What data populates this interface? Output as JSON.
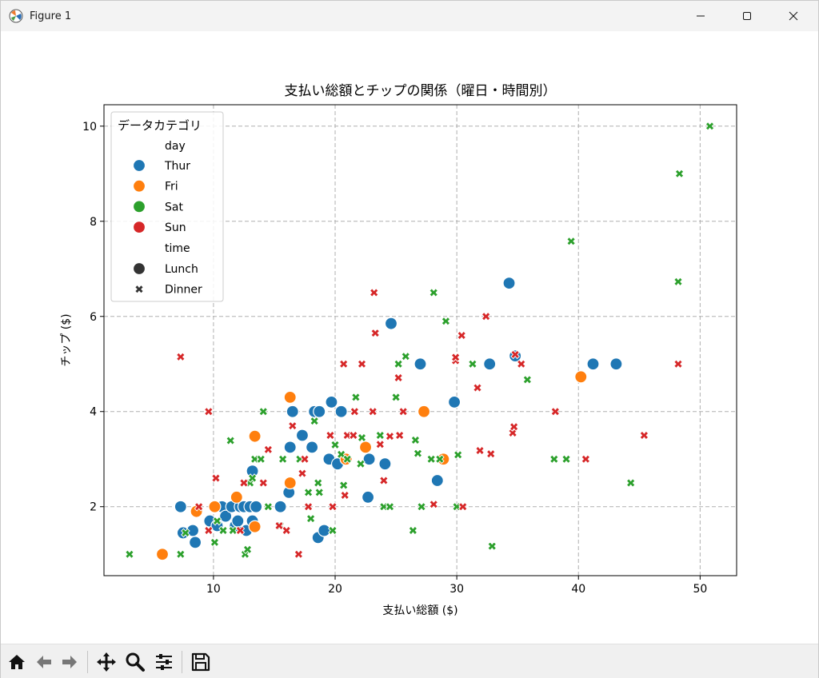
{
  "window": {
    "title": "Figure 1"
  },
  "toolbar": {
    "icons": [
      "home-icon",
      "back-arrow-icon",
      "forward-arrow-icon",
      "pan-move-icon",
      "zoom-magnifier-icon",
      "configure-subplots-icon",
      "save-floppy-icon"
    ]
  },
  "colors": {
    "Thur": "#1f77b4",
    "Fri": "#ff7f0e",
    "Sat": "#2ca02c",
    "Sun": "#d62728"
  },
  "chart_data": {
    "type": "scatter",
    "title": "支払い総額とチップの関係（曜日・時間別）",
    "xlabel": "支払い総額 ($)",
    "ylabel": "チップ ($)",
    "xlim": [
      1,
      53
    ],
    "ylim": [
      0.55,
      10.45
    ],
    "xticks": [
      10,
      20,
      30,
      40,
      50
    ],
    "yticks": [
      2,
      4,
      6,
      8,
      10
    ],
    "grid": true,
    "legend": {
      "title": "データカテゴリ",
      "placement": "top-left",
      "hue_header": "day",
      "style_header": "time",
      "days": [
        "Thur",
        "Fri",
        "Sat",
        "Sun"
      ],
      "times": [
        "Lunch",
        "Dinner"
      ]
    },
    "series": [
      {
        "name": "Thur",
        "marker_by_time": "Lunch",
        "points": [
          [
            7.3,
            2.0
          ],
          [
            7.5,
            1.45
          ],
          [
            8.3,
            1.5
          ],
          [
            8.5,
            1.25
          ],
          [
            9.7,
            1.7
          ],
          [
            10.3,
            1.6
          ],
          [
            10.7,
            2.0
          ],
          [
            11.0,
            1.8
          ],
          [
            11.5,
            2.0
          ],
          [
            11.8,
            1.6
          ],
          [
            12.0,
            1.7
          ],
          [
            12.2,
            2.0
          ],
          [
            12.5,
            2.0
          ],
          [
            12.7,
            1.5
          ],
          [
            13.0,
            2.0
          ],
          [
            13.2,
            2.75
          ],
          [
            13.5,
            2.0
          ],
          [
            13.2,
            1.7
          ],
          [
            15.5,
            2.0
          ],
          [
            16.2,
            2.3
          ],
          [
            16.3,
            3.25
          ],
          [
            16.5,
            4.0
          ],
          [
            17.3,
            3.5
          ],
          [
            18.1,
            3.25
          ],
          [
            18.3,
            4.0
          ],
          [
            18.7,
            4.0
          ],
          [
            18.6,
            1.35
          ],
          [
            19.1,
            1.5
          ],
          [
            19.5,
            3.0
          ],
          [
            19.7,
            4.2
          ],
          [
            20.2,
            2.9
          ],
          [
            20.5,
            4.0
          ],
          [
            22.7,
            2.2
          ],
          [
            22.8,
            3.0
          ],
          [
            24.1,
            2.9
          ],
          [
            24.6,
            5.85
          ],
          [
            27.0,
            5.0
          ],
          [
            28.4,
            2.55
          ],
          [
            29.8,
            4.2
          ],
          [
            32.7,
            5.0
          ],
          [
            34.3,
            6.7
          ],
          [
            34.8,
            5.17
          ],
          [
            41.2,
            5.0
          ],
          [
            43.1,
            5.0
          ]
        ]
      },
      {
        "name": "Fri",
        "marker_by_time": "Lunch",
        "points": [
          [
            5.8,
            1.0
          ],
          [
            8.6,
            1.9
          ],
          [
            10.1,
            2.0
          ],
          [
            11.9,
            2.2
          ],
          [
            13.4,
            3.48
          ],
          [
            13.4,
            1.58
          ],
          [
            16.3,
            2.5
          ],
          [
            16.3,
            4.3
          ],
          [
            20.9,
            3.0
          ],
          [
            22.5,
            3.25
          ],
          [
            27.3,
            4.0
          ],
          [
            28.9,
            3.0
          ],
          [
            40.2,
            4.73
          ]
        ]
      },
      {
        "name": "Sat",
        "marker_by_time": "Dinner",
        "points": [
          [
            3.1,
            1.0
          ],
          [
            7.3,
            1.0
          ],
          [
            7.7,
            1.45
          ],
          [
            10.1,
            1.25
          ],
          [
            10.3,
            1.7
          ],
          [
            10.8,
            1.5
          ],
          [
            11.4,
            3.39
          ],
          [
            11.6,
            1.5
          ],
          [
            12.6,
            1.0
          ],
          [
            12.8,
            1.1
          ],
          [
            13.0,
            2.5
          ],
          [
            13.2,
            2.6
          ],
          [
            13.4,
            3.0
          ],
          [
            13.9,
            3.0
          ],
          [
            14.1,
            4.0
          ],
          [
            14.5,
            2.0
          ],
          [
            15.5,
            1.6
          ],
          [
            15.7,
            3.0
          ],
          [
            17.1,
            3.0
          ],
          [
            17.8,
            2.3
          ],
          [
            18.0,
            1.75
          ],
          [
            18.3,
            3.8
          ],
          [
            18.6,
            2.5
          ],
          [
            18.7,
            2.3
          ],
          [
            19.8,
            1.5
          ],
          [
            20.0,
            3.3
          ],
          [
            20.5,
            3.1
          ],
          [
            20.7,
            2.45
          ],
          [
            21.0,
            3.0
          ],
          [
            21.7,
            4.3
          ],
          [
            22.1,
            2.9
          ],
          [
            22.2,
            3.45
          ],
          [
            23.7,
            3.5
          ],
          [
            24.0,
            2.0
          ],
          [
            24.5,
            2.0
          ],
          [
            25.0,
            4.3
          ],
          [
            25.2,
            5.0
          ],
          [
            25.8,
            5.16
          ],
          [
            26.4,
            1.5
          ],
          [
            26.6,
            3.4
          ],
          [
            26.8,
            3.12
          ],
          [
            27.1,
            2.0
          ],
          [
            27.9,
            3.0
          ],
          [
            28.1,
            6.5
          ],
          [
            28.6,
            3.0
          ],
          [
            29.1,
            5.9
          ],
          [
            30.0,
            2.0
          ],
          [
            30.1,
            3.09
          ],
          [
            31.3,
            5.0
          ],
          [
            32.9,
            1.17
          ],
          [
            35.8,
            4.67
          ],
          [
            38.0,
            3.0
          ],
          [
            39.0,
            3.0
          ],
          [
            39.4,
            7.58
          ],
          [
            44.3,
            2.5
          ],
          [
            48.2,
            6.73
          ],
          [
            48.3,
            9.0
          ],
          [
            50.8,
            10.0
          ]
        ]
      },
      {
        "name": "Sun",
        "marker_by_time": "Dinner",
        "points": [
          [
            7.3,
            5.15
          ],
          [
            8.8,
            2.0
          ],
          [
            9.6,
            1.5
          ],
          [
            9.6,
            4.0
          ],
          [
            10.2,
            2.6
          ],
          [
            12.2,
            1.5
          ],
          [
            12.5,
            2.5
          ],
          [
            14.1,
            2.5
          ],
          [
            14.5,
            3.2
          ],
          [
            15.4,
            1.6
          ],
          [
            16.0,
            1.5
          ],
          [
            16.5,
            3.7
          ],
          [
            17.0,
            1.0
          ],
          [
            17.3,
            2.7
          ],
          [
            17.5,
            3.0
          ],
          [
            17.8,
            2.0
          ],
          [
            19.6,
            3.5
          ],
          [
            19.8,
            2.0
          ],
          [
            20.7,
            5.0
          ],
          [
            20.8,
            2.24
          ],
          [
            21.0,
            3.5
          ],
          [
            21.5,
            3.5
          ],
          [
            21.6,
            4.0
          ],
          [
            22.2,
            5.0
          ],
          [
            23.1,
            4.0
          ],
          [
            23.2,
            6.5
          ],
          [
            23.3,
            5.65
          ],
          [
            23.7,
            3.31
          ],
          [
            24.0,
            2.55
          ],
          [
            24.5,
            3.48
          ],
          [
            25.2,
            4.71
          ],
          [
            25.3,
            3.5
          ],
          [
            25.6,
            4.0
          ],
          [
            28.1,
            2.05
          ],
          [
            29.9,
            5.07
          ],
          [
            29.9,
            5.14
          ],
          [
            30.5,
            2.0
          ],
          [
            30.4,
            5.6
          ],
          [
            31.7,
            4.5
          ],
          [
            31.9,
            3.18
          ],
          [
            32.4,
            6.0
          ],
          [
            32.8,
            3.11
          ],
          [
            34.6,
            3.55
          ],
          [
            34.7,
            3.68
          ],
          [
            34.8,
            5.2
          ],
          [
            35.3,
            5.0
          ],
          [
            38.1,
            4.0
          ],
          [
            40.6,
            3.0
          ],
          [
            45.4,
            3.5
          ],
          [
            48.2,
            5.0
          ]
        ]
      }
    ]
  }
}
